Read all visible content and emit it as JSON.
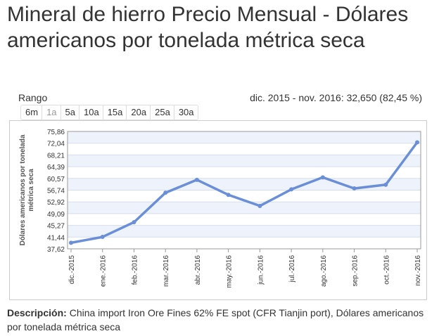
{
  "page": {
    "title": "Mineral de hierro Precio Mensual - Dólares americanos por tonelada métrica seca",
    "range_label": "Rango",
    "range_summary": "dic. 2015 - nov. 2016: 32,650 (82,45 %)",
    "range_buttons": [
      {
        "label": "6m",
        "disabled": false
      },
      {
        "label": "1a",
        "disabled": true
      },
      {
        "label": "5a",
        "disabled": false
      },
      {
        "label": "10a",
        "disabled": false
      },
      {
        "label": "15a",
        "disabled": false
      },
      {
        "label": "20a",
        "disabled": false
      },
      {
        "label": "25a",
        "disabled": false
      },
      {
        "label": "30a",
        "disabled": false
      }
    ],
    "description_label": "Descripción:",
    "description_text": "China import Iron Ore Fines 62% FE spot (CFR Tianjin port), Dólares americanos por tonelada métrica seca"
  },
  "colors": {
    "line": "#6a8fd6",
    "band": "#eef2fb",
    "grid": "#d6ddea"
  },
  "chart_data": {
    "type": "line",
    "title": "",
    "xlabel": "",
    "ylabel": "Dólares americanos por tonelada métrica seca",
    "categories": [
      "dic.-2015",
      "ene.-2016",
      "feb.-2016",
      "mar.-2016",
      "abr.-2016",
      "may.-2016",
      "jun.-2016",
      "jul.-2016",
      "ago.-2016",
      "sep.-2016",
      "oct.-2016",
      "nov.-2016"
    ],
    "series": [
      {
        "values": [
          39.6,
          41.5,
          46.3,
          55.9,
          60.1,
          55.2,
          51.6,
          57.0,
          60.9,
          57.3,
          58.5,
          72.3
        ]
      }
    ],
    "yticks": [
      "37,62",
      "41,44",
      "45,27",
      "49,09",
      "52,92",
      "56,74",
      "60,57",
      "64,39",
      "68,21",
      "72,04",
      "75,86"
    ],
    "ylim": [
      37.62,
      75.86
    ],
    "grid": true,
    "legend": "none"
  }
}
